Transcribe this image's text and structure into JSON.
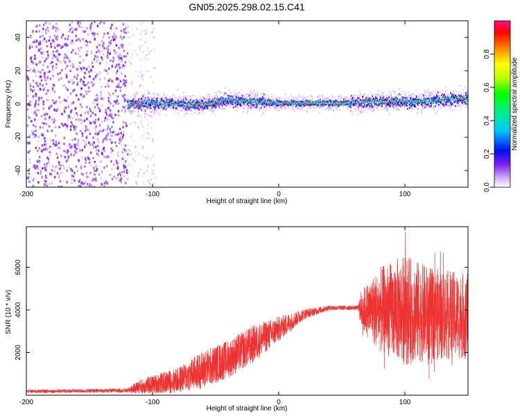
{
  "title": "GN05.2025.298.02.15.C41",
  "chart_data": [
    {
      "type": "heatmap",
      "name": "spectrogram",
      "xlabel": "Height of straight line (km)",
      "ylabel": "Frequency (Hz)",
      "xlim": [
        -200,
        150
      ],
      "ylim": [
        -50,
        50
      ],
      "xticks": [
        -200,
        -100,
        0,
        100
      ],
      "yticks": [
        -40,
        -20,
        0,
        20,
        40
      ],
      "band": {
        "noise_region_x": [
          -200,
          -120
        ],
        "sparse_region_x": [
          -120,
          -98
        ],
        "ridge_x": [
          -120,
          150
        ],
        "ridge_center_hz": [
          {
            "x": -120,
            "y": 0
          },
          {
            "x": -100,
            "y": 1
          },
          {
            "x": -60,
            "y": 0
          },
          {
            "x": -40,
            "y": 3
          },
          {
            "x": -20,
            "y": 2
          },
          {
            "x": 0,
            "y": 1
          },
          {
            "x": 55,
            "y": 1
          },
          {
            "x": 80,
            "y": 2
          },
          {
            "x": 110,
            "y": 2
          },
          {
            "x": 150,
            "y": 4
          }
        ]
      },
      "colorbar": {
        "label": "Normalized spectral amplitude",
        "range": [
          0,
          1
        ],
        "ticks": [
          "0.0",
          "0.2",
          "0.4",
          "0.6",
          "0.8"
        ],
        "colors": [
          "#ffffff",
          "#d0a4f4",
          "#7a1cf0",
          "#0010f0",
          "#00f0f0",
          "#00ff00",
          "#ffff00",
          "#ff8000",
          "#ff0000",
          "#ff1080"
        ]
      }
    },
    {
      "type": "line",
      "name": "snr",
      "xlabel": "Height of straight line (km)",
      "ylabel": "SNR (10 * v/v)",
      "xlim": [
        -200,
        150
      ],
      "ylim": [
        0,
        7900
      ],
      "xticks": [
        -200,
        -100,
        0,
        100
      ],
      "yticks": [
        2000,
        4000,
        6000
      ],
      "color": "#ee3333",
      "envelope": [
        {
          "x": -200,
          "mean": 180,
          "spread": 80
        },
        {
          "x": -120,
          "mean": 220,
          "spread": 100
        },
        {
          "x": -110,
          "mean": 400,
          "spread": 350
        },
        {
          "x": -80,
          "mean": 700,
          "spread": 600
        },
        {
          "x": -60,
          "mean": 1200,
          "spread": 900
        },
        {
          "x": -40,
          "mean": 1700,
          "spread": 900
        },
        {
          "x": -20,
          "mean": 2400,
          "spread": 900
        },
        {
          "x": 0,
          "mean": 3100,
          "spread": 600
        },
        {
          "x": 20,
          "mean": 3800,
          "spread": 250
        },
        {
          "x": 40,
          "mean": 4100,
          "spread": 120
        },
        {
          "x": 63,
          "mean": 4100,
          "spread": 100
        },
        {
          "x": 65,
          "mean": 4000,
          "spread": 900
        },
        {
          "x": 80,
          "mean": 4000,
          "spread": 2000
        },
        {
          "x": 100,
          "mean": 4000,
          "spread": 2600
        },
        {
          "x": 120,
          "mean": 3800,
          "spread": 2200
        },
        {
          "x": 150,
          "mean": 3700,
          "spread": 2000
        }
      ]
    }
  ]
}
